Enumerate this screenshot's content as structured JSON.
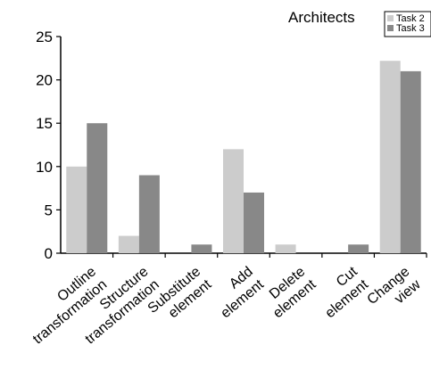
{
  "chart_data": {
    "type": "bar",
    "title": "Architects",
    "xlabel": "",
    "ylabel": "",
    "ylim": [
      0,
      25
    ],
    "yticks": [
      0,
      5,
      10,
      15,
      20,
      25
    ],
    "grid": false,
    "legend_position": "top-right",
    "categories": [
      [
        "Outline",
        "transformation"
      ],
      [
        "Structure",
        "transformation"
      ],
      [
        "Substitute",
        "element"
      ],
      [
        "Add",
        "element"
      ],
      [
        "Delete",
        "element"
      ],
      [
        "Cut",
        "element"
      ],
      [
        "Change",
        "view"
      ]
    ],
    "series": [
      {
        "name": "Task 2",
        "color": "#cccccc",
        "values": [
          10,
          2,
          0,
          12,
          1,
          0,
          22.2
        ]
      },
      {
        "name": "Task 3",
        "color": "#888888",
        "values": [
          15,
          9,
          1,
          7,
          0,
          1,
          21
        ]
      }
    ]
  }
}
